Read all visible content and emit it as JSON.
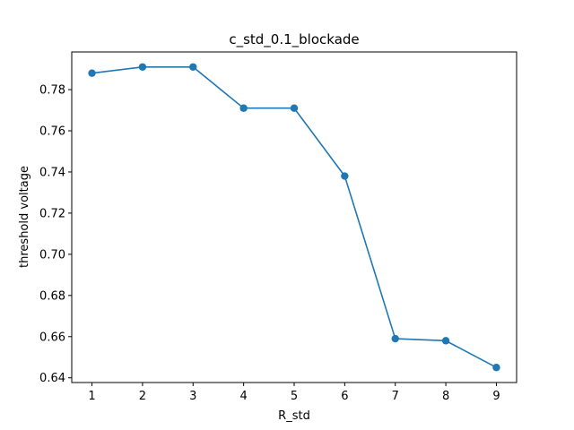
{
  "chart_data": {
    "type": "line",
    "title": "c_std_0.1_blockade",
    "xlabel": "R_std",
    "ylabel": "threshold voltage",
    "x": [
      1,
      2,
      3,
      4,
      5,
      6,
      7,
      8,
      9
    ],
    "series": [
      {
        "values": [
          0.788,
          0.791,
          0.791,
          0.771,
          0.771,
          0.738,
          0.659,
          0.658,
          0.645
        ],
        "color": "#1f77b4",
        "marker": "circle"
      }
    ],
    "xticks": [
      "1",
      "2",
      "3",
      "4",
      "5",
      "6",
      "7",
      "8",
      "9"
    ],
    "yticks": [
      "0.64",
      "0.66",
      "0.68",
      "0.70",
      "0.72",
      "0.74",
      "0.76",
      "0.78"
    ],
    "xlim": [
      0.6,
      9.4
    ],
    "ylim": [
      0.6377,
      0.7983
    ],
    "grid": false,
    "legend": "none"
  }
}
